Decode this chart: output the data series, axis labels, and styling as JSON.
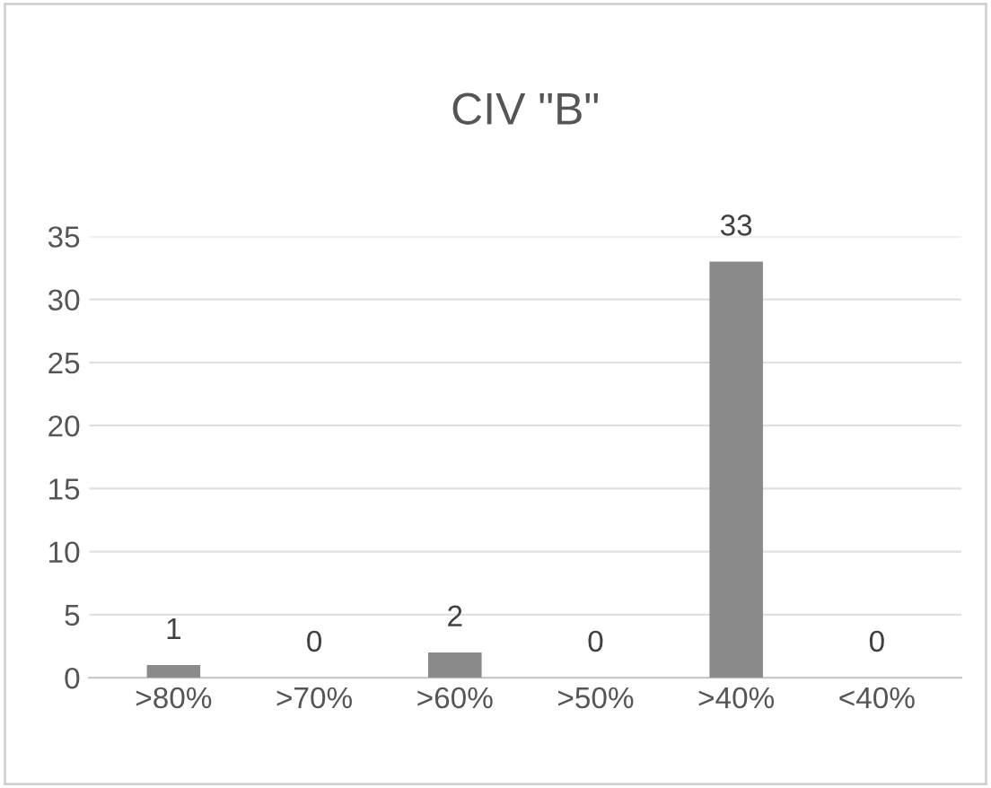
{
  "chart_data": {
    "type": "bar",
    "title": "CIV \"B\"",
    "categories": [
      ">80%",
      ">70%",
      ">60%",
      ">50%",
      ">40%",
      "<40%"
    ],
    "values": [
      1,
      0,
      2,
      0,
      33,
      0
    ],
    "color": "#8a8a8a",
    "ylim": [
      0,
      35
    ],
    "yticks": [
      0,
      5,
      10,
      15,
      20,
      25,
      30,
      35
    ],
    "grid": "y",
    "data_labels": true
  }
}
